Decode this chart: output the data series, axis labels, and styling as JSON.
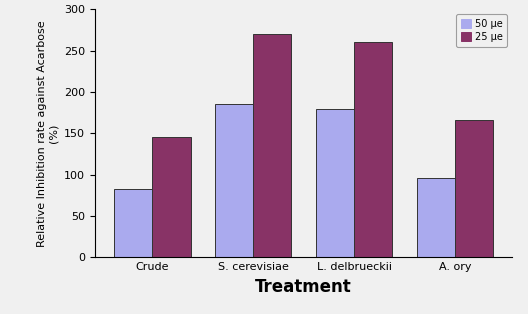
{
  "categories": [
    "Crude",
    "S. cerevisiae",
    "L. delbrueckii",
    "A. ory"
  ],
  "values_50ug": [
    83,
    186,
    179,
    96
  ],
  "values_25ug": [
    146,
    270,
    260,
    166
  ],
  "bar_color_50ug": "#aaaaee",
  "bar_color_25ug": "#883366",
  "bar_edge_color": "#333333",
  "title": "",
  "xlabel": "Treatment",
  "ylabel": "Relative Inhibition rate against Acarbose\n(%)",
  "ylim": [
    0,
    300
  ],
  "yticks": [
    0,
    50,
    100,
    150,
    200,
    250,
    300
  ],
  "legend_labels": [
    "50 μe",
    "25 μe"
  ],
  "bar_width": 0.38,
  "xlabel_fontsize": 12,
  "ylabel_fontsize": 8,
  "tick_fontsize": 8,
  "legend_fontsize": 7,
  "fig_bg": "#f0f0f0"
}
